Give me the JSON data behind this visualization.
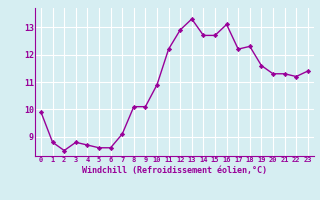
{
  "x": [
    0,
    1,
    2,
    3,
    4,
    5,
    6,
    7,
    8,
    9,
    10,
    11,
    12,
    13,
    14,
    15,
    16,
    17,
    18,
    19,
    20,
    21,
    22,
    23
  ],
  "y": [
    9.9,
    8.8,
    8.5,
    8.8,
    8.7,
    8.6,
    8.6,
    9.1,
    10.1,
    10.1,
    10.9,
    12.2,
    12.9,
    13.3,
    12.7,
    12.7,
    13.1,
    12.2,
    12.3,
    11.6,
    11.3,
    11.3,
    11.2,
    11.4
  ],
  "line_color": "#990099",
  "marker": "D",
  "marker_size": 2.2,
  "linewidth": 1.0,
  "background_color": "#d6eef2",
  "grid_color": "#ffffff",
  "xlabel": "Windchill (Refroidissement éolien,°C)",
  "xlabel_color": "#990099",
  "tick_color": "#990099",
  "yticks": [
    9,
    10,
    11,
    12,
    13
  ],
  "xticks": [
    0,
    1,
    2,
    3,
    4,
    5,
    6,
    7,
    8,
    9,
    10,
    11,
    12,
    13,
    14,
    15,
    16,
    17,
    18,
    19,
    20,
    21,
    22,
    23
  ],
  "ylim": [
    8.3,
    13.7
  ],
  "xlim": [
    -0.5,
    23.5
  ]
}
